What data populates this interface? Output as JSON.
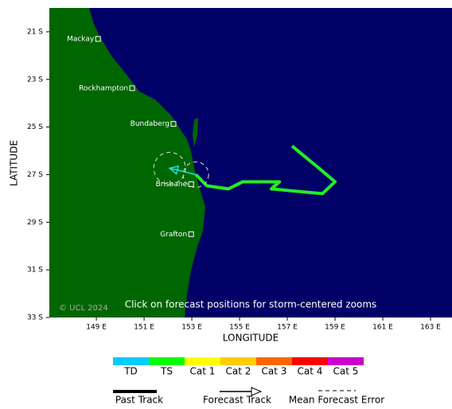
{
  "map": {
    "xlim": [
      147.03,
      163.9
    ],
    "ylim": [
      -20,
      -33
    ],
    "xticks": [
      {
        "value": 149,
        "label": "149 E"
      },
      {
        "value": 151,
        "label": "151 E"
      },
      {
        "value": 153,
        "label": "153 E"
      },
      {
        "value": 155,
        "label": "155 E"
      },
      {
        "value": 157,
        "label": "157 E"
      },
      {
        "value": 159,
        "label": "159 E"
      },
      {
        "value": 161,
        "label": "161 E"
      },
      {
        "value": 163,
        "label": "163 E"
      }
    ],
    "yticks": [
      {
        "value": -21,
        "label": "21 S"
      },
      {
        "value": -23,
        "label": "23 S"
      },
      {
        "value": -25,
        "label": "25 S"
      },
      {
        "value": -27,
        "label": "27 S"
      },
      {
        "value": -29,
        "label": "29 S"
      },
      {
        "value": -31,
        "label": "31 S"
      },
      {
        "value": -33,
        "label": "33 S"
      }
    ],
    "xlabel": "LONGITUDE",
    "ylabel": "LATITUDE",
    "credit": "© UCL 2024",
    "note": "Click on forecast positions for storm-centered zooms",
    "cities": [
      {
        "name": "Mackay",
        "lon": 149.07,
        "lat": -21.3
      },
      {
        "name": "Rockhampton",
        "lon": 150.5,
        "lat": -23.37
      },
      {
        "name": "Bundaberg",
        "lon": 152.23,
        "lat": -24.87
      },
      {
        "name": "Brisbane",
        "lon": 152.97,
        "lat": -27.4
      },
      {
        "name": "Grafton",
        "lon": 152.97,
        "lat": -29.5
      }
    ],
    "past_track": {
      "color": "#22ee22",
      "lon": [
        157.2,
        158.17,
        159.0,
        158.47,
        156.33,
        156.67,
        155.13,
        154.53,
        153.63,
        153.17
      ],
      "lat": [
        -25.8,
        -26.6,
        -27.3,
        -27.8,
        -27.6,
        -27.3,
        -27.3,
        -27.6,
        -27.47,
        -27.0
      ]
    },
    "forecast_track": {
      "color": "#22dddd",
      "lon": [
        153.17,
        152.07
      ],
      "lat": [
        -27.0,
        -26.73
      ]
    }
  },
  "legend": {
    "categories": [
      {
        "label": "TD",
        "color": "#00ccff"
      },
      {
        "label": "TS",
        "color": "#00ff00"
      },
      {
        "label": "Cat 1",
        "color": "#ffff00"
      },
      {
        "label": "Cat 2",
        "color": "#ffcc00"
      },
      {
        "label": "Cat 3",
        "color": "#ff6600"
      },
      {
        "label": "Cat 4",
        "color": "#ff0000"
      },
      {
        "label": "Cat 5",
        "color": "#cc00cc"
      }
    ],
    "past_track": "Past Track",
    "forecast_track": "Forecast Track",
    "error": "Mean Forecast Error"
  }
}
